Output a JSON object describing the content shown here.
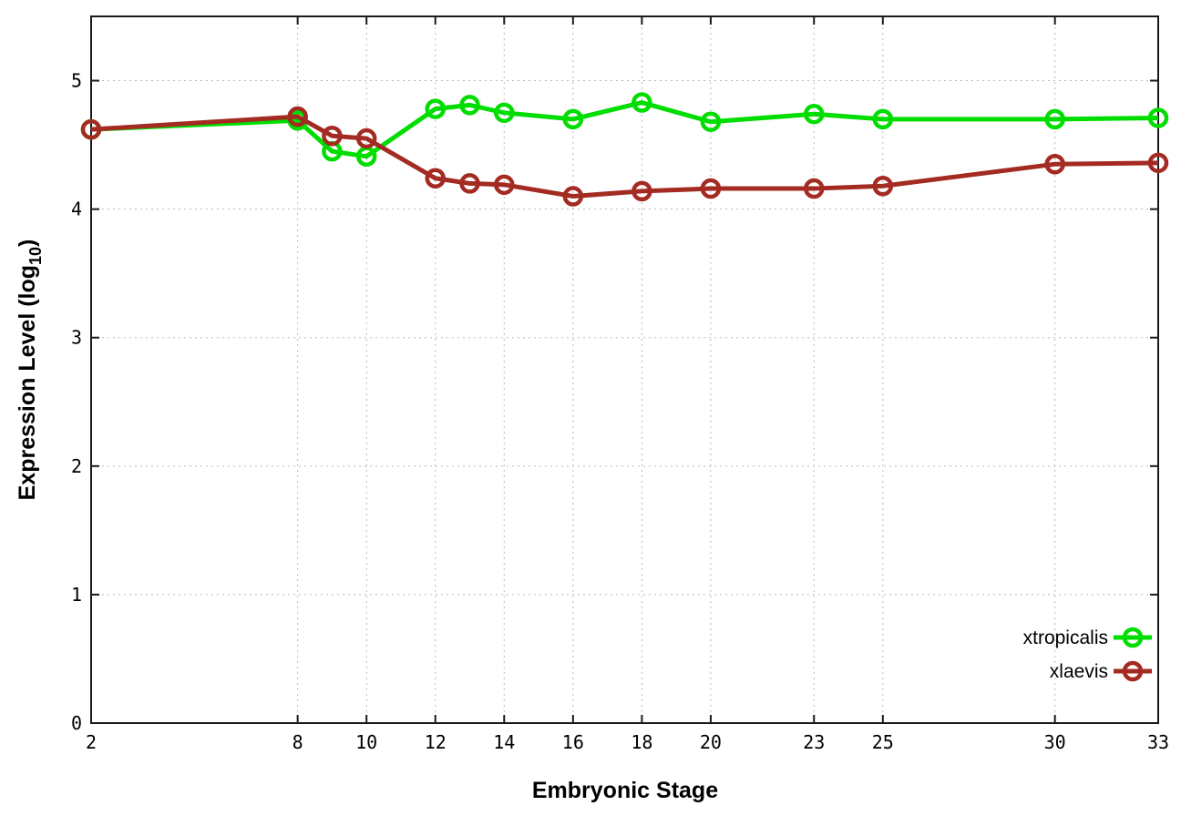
{
  "chart_data": {
    "type": "line",
    "title": "",
    "xlabel": "Embryonic Stage",
    "ylabel": "Expression Level (log10)",
    "ylabel_parts": {
      "main": "Expression Level (log",
      "sub": "10",
      "close": ")"
    },
    "x": [
      2,
      8,
      9,
      10,
      12,
      13,
      14,
      16,
      18,
      20,
      23,
      25,
      30,
      33
    ],
    "x_ticks": [
      2,
      8,
      10,
      12,
      14,
      16,
      18,
      20,
      23,
      25,
      30,
      33
    ],
    "y_ticks": [
      0,
      1,
      2,
      3,
      4,
      5
    ],
    "xlim": [
      2,
      33
    ],
    "ylim": [
      0,
      5.5
    ],
    "grid": "dotted",
    "legend_position": "inside-right",
    "marker": "open-circle",
    "series": [
      {
        "name": "xtropicalis",
        "color": "#00dd00",
        "values": [
          4.62,
          4.69,
          4.45,
          4.41,
          4.78,
          4.81,
          4.75,
          4.7,
          4.83,
          4.68,
          4.74,
          4.7,
          4.7,
          4.71
        ]
      },
      {
        "name": "xlaevis",
        "color": "#a32b22",
        "values": [
          4.62,
          4.72,
          4.57,
          4.55,
          4.24,
          4.2,
          4.19,
          4.1,
          4.14,
          4.16,
          4.16,
          4.18,
          4.35,
          4.36
        ]
      }
    ]
  }
}
